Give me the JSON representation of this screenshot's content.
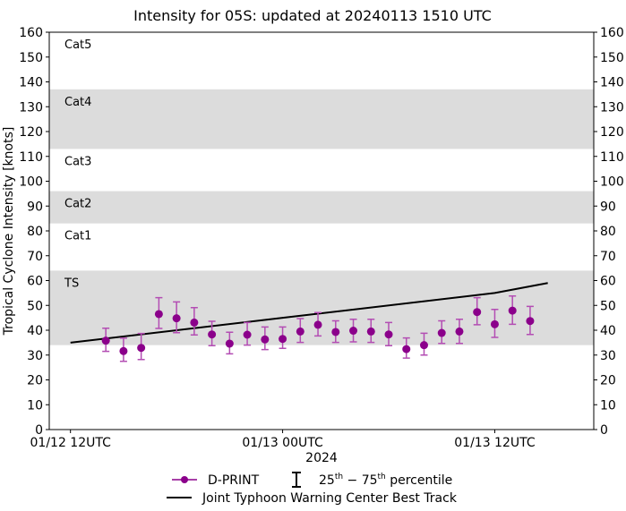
{
  "chart_data": {
    "type": "scatter",
    "title": "Intensity for 05S: updated at 20240113 1510 UTC",
    "xlabel": "2024",
    "ylabel": "Tropical Cyclone Intensity [knots]",
    "ylim": [
      0,
      160
    ],
    "yticks": [
      0,
      10,
      20,
      30,
      40,
      50,
      60,
      70,
      80,
      90,
      100,
      110,
      120,
      130,
      140,
      150,
      160
    ],
    "xlim": [
      "2024-01-12T10:48",
      "2024-01-13T17:36"
    ],
    "xticks": [
      {
        "t": "2024-01-12T12:00",
        "label": "01/12 12UTC"
      },
      {
        "t": "2024-01-13T00:00",
        "label": "01/13 00UTC"
      },
      {
        "t": "2024-01-13T12:00",
        "label": "01/13 12UTC"
      }
    ],
    "grid": false,
    "category_bands": [
      {
        "label": "TS",
        "min": 34,
        "max": 64,
        "shaded": true
      },
      {
        "label": "Cat1",
        "min": 64,
        "max": 83,
        "shaded": false
      },
      {
        "label": "Cat2",
        "min": 83,
        "max": 96,
        "shaded": true
      },
      {
        "label": "Cat3",
        "min": 96,
        "max": 113,
        "shaded": false
      },
      {
        "label": "Cat4",
        "min": 113,
        "max": 137,
        "shaded": true
      },
      {
        "label": "Cat5",
        "min": 137,
        "max": 160,
        "shaded": false
      }
    ],
    "band_color": "#dcdcdc",
    "series": [
      {
        "name": "D-PRINT",
        "color": "#8b008b",
        "x": [
          "2024-01-12T14:00",
          "2024-01-12T15:00",
          "2024-01-12T16:00",
          "2024-01-12T17:00",
          "2024-01-12T18:00",
          "2024-01-12T19:00",
          "2024-01-12T20:00",
          "2024-01-12T21:00",
          "2024-01-12T22:00",
          "2024-01-12T23:00",
          "2024-01-13T00:00",
          "2024-01-13T01:00",
          "2024-01-13T02:00",
          "2024-01-13T03:00",
          "2024-01-13T04:00",
          "2024-01-13T05:00",
          "2024-01-13T06:00",
          "2024-01-13T07:00",
          "2024-01-13T08:00",
          "2024-01-13T09:00",
          "2024-01-13T10:00",
          "2024-01-13T11:00",
          "2024-01-13T12:00",
          "2024-01-13T13:00",
          "2024-01-13T14:00"
        ],
        "y": [
          35.8,
          31.6,
          32.9,
          46.5,
          44.8,
          43.1,
          38.3,
          34.6,
          38.2,
          36.3,
          36.5,
          39.5,
          42.2,
          39.3,
          39.8,
          39.5,
          38.3,
          32.4,
          34.0,
          38.9,
          39.5,
          47.3,
          42.4,
          47.9,
          43.7
        ],
        "p25": [
          31.5,
          27.5,
          28.2,
          40.7,
          39.0,
          38.1,
          33.8,
          30.5,
          34.0,
          32.2,
          32.7,
          35.1,
          37.7,
          35.1,
          35.3,
          35.1,
          33.8,
          28.8,
          30.0,
          34.7,
          34.7,
          42.2,
          37.1,
          42.4,
          38.3
        ],
        "p75": [
          40.8,
          36.8,
          38.7,
          53.1,
          51.4,
          49.1,
          43.6,
          39.2,
          43.1,
          41.3,
          41.3,
          44.7,
          47.1,
          43.8,
          44.4,
          44.4,
          43.1,
          36.9,
          38.8,
          43.8,
          44.4,
          53.1,
          48.4,
          53.8,
          49.6
        ]
      },
      {
        "name": "Joint Typhoon Warning Center Best Track",
        "color": "#000000",
        "x": [
          "2024-01-12T12:00",
          "2024-01-13T00:00",
          "2024-01-13T12:00",
          "2024-01-13T15:00"
        ],
        "y": [
          35,
          45,
          55,
          59
        ]
      }
    ],
    "legend": {
      "placement": "bottom",
      "dprint": "D-PRINT",
      "percentile": "25th − 75th percentile",
      "percentile_base1": "25",
      "percentile_sup1": "th",
      "percentile_mid": " − 75",
      "percentile_sup2": "th",
      "percentile_tail": " percentile",
      "best_track": "Joint Typhoon Warning Center Best Track"
    }
  }
}
